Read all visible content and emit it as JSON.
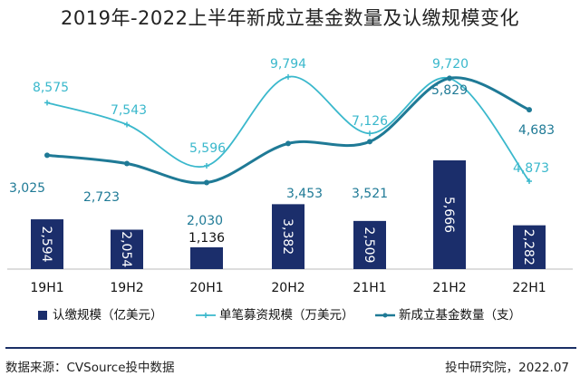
{
  "title": "2019年-2022上半年新成立基金数量及认缴规模变化",
  "source_left": "数据来源：CVSource投中数据",
  "source_right": "投中研究院，2022.07",
  "colors": {
    "bar": "#1b2e6b",
    "line_fund_size": "#3ab8cc",
    "line_fund_count": "#1f7a96",
    "divider": "#1a2f66"
  },
  "chart_data": {
    "type": "bar",
    "categories": [
      "19H1",
      "19H2",
      "20H1",
      "20H2",
      "21H1",
      "21H2",
      "22H1"
    ],
    "series": [
      {
        "name": "认缴规模（亿美元）",
        "type": "bar",
        "values": [
          2594,
          2054,
          1136,
          3382,
          2509,
          5666,
          2282
        ],
        "labels": [
          "2,594",
          "2,054",
          "1,136",
          "3,382",
          "2,509",
          "5,666",
          "2,282"
        ]
      },
      {
        "name": "单笔募资规模（万美元）",
        "type": "line",
        "values": [
          8575,
          7543,
          5596,
          9794,
          7126,
          9720,
          4873
        ],
        "labels": [
          "8,575",
          "7,543",
          "5,596",
          "9,794",
          "7,126",
          "9,720",
          "4,873"
        ]
      },
      {
        "name": "新成立基金数量（支）",
        "type": "line",
        "values": [
          3025,
          2723,
          2030,
          3453,
          3521,
          5829,
          4683
        ],
        "labels": [
          "3,025",
          "2,723",
          "2,030",
          "3,453",
          "3,521",
          "5,829",
          "4,683"
        ]
      }
    ]
  }
}
